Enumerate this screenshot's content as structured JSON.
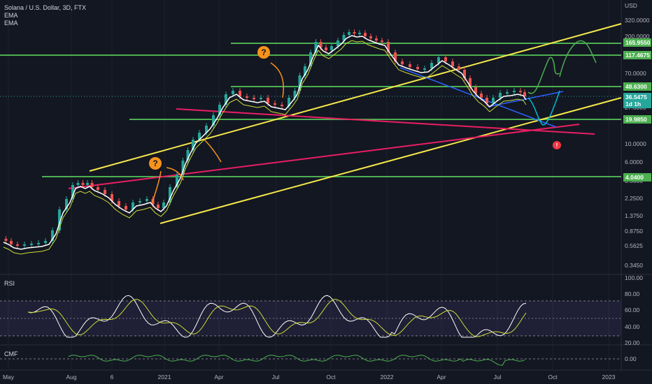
{
  "header": {
    "symbol": "Solana / U.S. Dollar, 3D, FTX",
    "indicator_1": "EMA",
    "indicator_2": "EMA"
  },
  "currency": "USD",
  "price_axis": [
    "320.0000",
    "200.0000",
    "70.0000",
    "27.0000",
    "10.0000",
    "6.0000",
    "3.5000",
    "2.2500",
    "1.3750",
    "0.8750",
    "0.5625",
    "0.3450"
  ],
  "price_tags": [
    {
      "label": "165.9550",
      "color": "#4caf50",
      "value": 165.955
    },
    {
      "label": "117.4675",
      "color": "#4caf50",
      "value": 117.4675
    },
    {
      "label": "48.6300",
      "color": "#4caf50",
      "value": 48.63
    },
    {
      "label": "36.5475",
      "color": "#26a69a",
      "value": 36.5475
    },
    {
      "label": "1d 1h",
      "color": "#26a69a",
      "value": 31
    },
    {
      "label": "19.9850",
      "color": "#4caf50",
      "value": 19.985
    },
    {
      "label": "4.0400",
      "color": "#4caf50",
      "value": 4.04
    }
  ],
  "rsi": {
    "title": "RSI",
    "axis": [
      "100.00",
      "80.00",
      "60.00",
      "40.00",
      "20.00"
    ]
  },
  "cmf": {
    "title": "CMF",
    "axis": [
      "0.00"
    ]
  },
  "time_axis": [
    "May",
    "Aug",
    "6",
    "2021",
    "Apr",
    "Jul",
    "Oct",
    "2022",
    "Apr",
    "Jul",
    "Oct",
    "2023"
  ],
  "annotations": {
    "question_mark": "?",
    "warning_mark": "!"
  },
  "colors": {
    "background": "#131722",
    "support_resistance": "#4caf50",
    "channel": "#f5e94b",
    "trendline_pink": "#e91e63",
    "wedge_blue": "#2962ff",
    "arrow_orange": "#f7931a",
    "rsi_line": "#ffffff",
    "rsi_signal": "#cddc39",
    "cmf_line": "#4caf50"
  }
}
